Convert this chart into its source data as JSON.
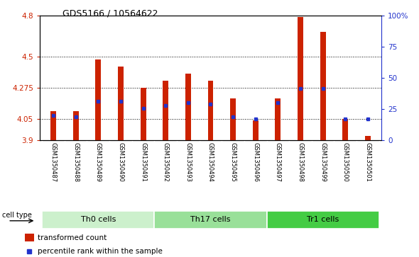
{
  "title": "GDS5166 / 10564622",
  "samples": [
    "GSM1350487",
    "GSM1350488",
    "GSM1350489",
    "GSM1350490",
    "GSM1350491",
    "GSM1350492",
    "GSM1350493",
    "GSM1350494",
    "GSM1350495",
    "GSM1350496",
    "GSM1350497",
    "GSM1350498",
    "GSM1350499",
    "GSM1350500",
    "GSM1350501"
  ],
  "bar_values": [
    4.11,
    4.11,
    4.48,
    4.43,
    4.275,
    4.33,
    4.38,
    4.33,
    4.2,
    4.04,
    4.2,
    4.79,
    4.68,
    4.05,
    3.93
  ],
  "percentile_values": [
    4.08,
    4.07,
    4.18,
    4.18,
    4.13,
    4.15,
    4.17,
    4.16,
    4.07,
    4.05,
    4.17,
    4.27,
    4.27,
    4.055,
    4.05
  ],
  "cell_groups": [
    {
      "label": "Th0 cells",
      "start": 0,
      "end": 5,
      "color": "#ccf0cc"
    },
    {
      "label": "Th17 cells",
      "start": 5,
      "end": 10,
      "color": "#99e099"
    },
    {
      "label": "Tr1 cells",
      "start": 10,
      "end": 15,
      "color": "#44cc44"
    }
  ],
  "ymin": 3.9,
  "ymax": 4.8,
  "yticks": [
    3.9,
    4.05,
    4.275,
    4.5,
    4.8
  ],
  "ytick_labels": [
    "3.9",
    "4.05",
    "4.275",
    "4.5",
    "4.8"
  ],
  "right_yticks": [
    0,
    25,
    50,
    75,
    100
  ],
  "right_ytick_labels": [
    "0",
    "25",
    "50",
    "75",
    "100%"
  ],
  "bar_color": "#cc2200",
  "percentile_color": "#2233cc",
  "bar_width": 0.25,
  "bg_color": "#ffffff",
  "label_bg_color": "#cccccc",
  "cell_type_label": "cell type",
  "grid_yticks": [
    4.05,
    4.275,
    4.5
  ]
}
